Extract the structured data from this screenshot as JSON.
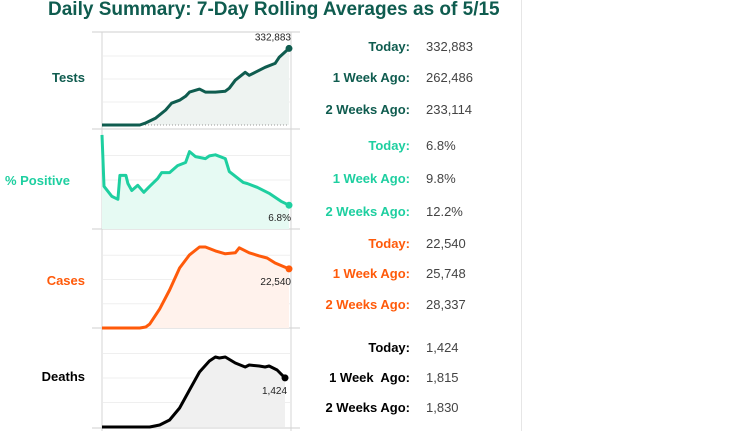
{
  "title": "Daily Summary: 7-Day Rolling Averages as of 5/15",
  "chart_data": [
    {
      "type": "line",
      "metric": "Tests",
      "color": "#0f5c4f",
      "fill": "#eef3f1",
      "end_label": "332,883",
      "ylim": [
        0,
        400000
      ],
      "points": [
        [
          0,
          0
        ],
        [
          19,
          0
        ],
        [
          22,
          9000
        ],
        [
          27,
          30000
        ],
        [
          32,
          65000
        ],
        [
          35,
          95000
        ],
        [
          39,
          108000
        ],
        [
          42,
          125000
        ],
        [
          44,
          143000
        ],
        [
          49,
          156000
        ],
        [
          52,
          143000
        ],
        [
          57,
          143000
        ],
        [
          62,
          147000
        ],
        [
          64,
          160000
        ],
        [
          67,
          195000
        ],
        [
          72,
          229000
        ],
        [
          74,
          216000
        ],
        [
          77,
          229000
        ],
        [
          82,
          251000
        ],
        [
          87,
          268000
        ],
        [
          89,
          294000
        ],
        [
          94,
          332883
        ]
      ]
    },
    {
      "type": "line",
      "metric": "% Positive",
      "color": "#1ecfa0",
      "fill": "#e6faf3",
      "end_label": "6.8%",
      "ylim": [
        0,
        28
      ],
      "points": [
        [
          0,
          26.9
        ],
        [
          1,
          12.2
        ],
        [
          5,
          9.3
        ],
        [
          8,
          8.5
        ],
        [
          9,
          15.3
        ],
        [
          12,
          15.3
        ],
        [
          13,
          13.0
        ],
        [
          15,
          11.0
        ],
        [
          18,
          12.5
        ],
        [
          21,
          10.5
        ],
        [
          24,
          12.2
        ],
        [
          28,
          14.4
        ],
        [
          30,
          16.1
        ],
        [
          34,
          16.1
        ],
        [
          38,
          18.1
        ],
        [
          42,
          19.0
        ],
        [
          44,
          22.1
        ],
        [
          47,
          20.7
        ],
        [
          52,
          20.1
        ],
        [
          54,
          20.9
        ],
        [
          57,
          21.2
        ],
        [
          62,
          20.1
        ],
        [
          64,
          16.4
        ],
        [
          71,
          13.3
        ],
        [
          73,
          13.0
        ],
        [
          78,
          11.9
        ],
        [
          84,
          10.2
        ],
        [
          90,
          7.9
        ],
        [
          94,
          6.8
        ]
      ]
    },
    {
      "type": "line",
      "metric": "Cases",
      "color": "#ff5a0a",
      "fill": "#fff2ec",
      "end_label": "22,540",
      "ylim": [
        0,
        37000
      ],
      "points": [
        [
          0,
          0
        ],
        [
          19,
          0
        ],
        [
          22,
          382
        ],
        [
          24,
          1500
        ],
        [
          29,
          7300
        ],
        [
          34,
          14500
        ],
        [
          39,
          22900
        ],
        [
          44,
          27900
        ],
        [
          49,
          30900
        ],
        [
          52,
          30900
        ],
        [
          57,
          29400
        ],
        [
          62,
          28300
        ],
        [
          67,
          28700
        ],
        [
          69,
          30600
        ],
        [
          74,
          28700
        ],
        [
          79,
          27500
        ],
        [
          83,
          26700
        ],
        [
          87,
          24800
        ],
        [
          94,
          22540
        ]
      ]
    },
    {
      "type": "line",
      "metric": "Deaths",
      "color": "#000000",
      "fill": "#f0f0f0",
      "end_label": "1,424",
      "ylim": [
        0,
        2842
      ],
      "points": [
        [
          0,
          0
        ],
        [
          24,
          0
        ],
        [
          29,
          58
        ],
        [
          34,
          203
        ],
        [
          39,
          551
        ],
        [
          44,
          1073
        ],
        [
          49,
          1595
        ],
        [
          54,
          1914
        ],
        [
          57,
          2030
        ],
        [
          59,
          2001
        ],
        [
          62,
          2030
        ],
        [
          67,
          1856
        ],
        [
          72,
          1740
        ],
        [
          74,
          1798
        ],
        [
          79,
          1769
        ],
        [
          82,
          1740
        ],
        [
          84,
          1769
        ],
        [
          88,
          1653
        ],
        [
          92,
          1424
        ]
      ]
    }
  ],
  "stats": [
    {
      "metric": "Tests",
      "color": "#0f5c4f",
      "rows": [
        {
          "label": "Today:",
          "value": "332,883"
        },
        {
          "label": "1 Week Ago:",
          "value": "262,486"
        },
        {
          "label": "2 Weeks Ago:",
          "value": "233,114"
        }
      ]
    },
    {
      "metric": "% Positive",
      "color": "#1ecfa0",
      "rows": [
        {
          "label": "Today:",
          "value": "6.8%"
        },
        {
          "label": "1 Week Ago:",
          "value": "9.8%"
        },
        {
          "label": "2 Weeks Ago:",
          "value": "12.2%"
        }
      ]
    },
    {
      "metric": "Cases",
      "color": "#ff5a0a",
      "rows": [
        {
          "label": "Today:",
          "value": "22,540"
        },
        {
          "label": "1 Week Ago:",
          "value": "25,748"
        },
        {
          "label": "2 Weeks Ago:",
          "value": "28,337"
        }
      ]
    },
    {
      "metric": "Deaths",
      "color": "#000000",
      "rows": [
        {
          "label": "Today:",
          "value": "1,424"
        },
        {
          "label": "1 Week  Ago:",
          "value": "1,815"
        },
        {
          "label": "2 Weeks Ago:",
          "value": "1,830"
        }
      ]
    }
  ]
}
